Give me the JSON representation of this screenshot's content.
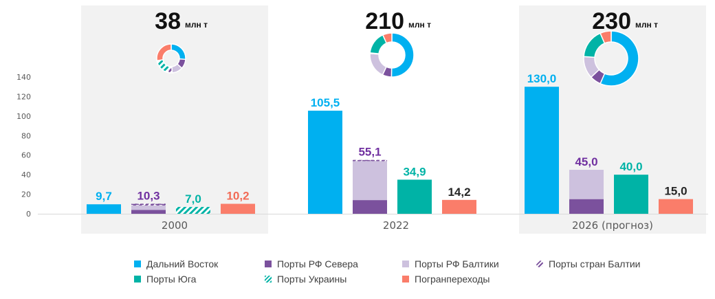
{
  "chart_data": {
    "type": "bar",
    "groups": [
      "2000",
      "2022",
      "2026 (прогноз)"
    ],
    "totals": [
      "38",
      "210",
      "230"
    ],
    "totals_unit": "млн т",
    "ylim": [
      0,
      140
    ],
    "yticks": [
      0,
      20,
      40,
      60,
      80,
      100,
      120,
      140
    ],
    "highlighted_groups": [
      "2000",
      "2026 (прогноз)"
    ],
    "bars": [
      {
        "group": "2000",
        "series": "Дальний Восток",
        "value": 9.7,
        "label": "9,7"
      },
      {
        "group": "2000",
        "stack": [
          {
            "series": "Порты РФ Севера",
            "value": 4.0
          },
          {
            "series": "Порты РФ Балтики",
            "value": 4.5
          },
          {
            "series": "Порты стран Балтии",
            "value": 1.8
          }
        ],
        "value": 10.3,
        "label": "10,3"
      },
      {
        "group": "2000",
        "series": "Порты Украины",
        "value": 7.0,
        "label": "7,0"
      },
      {
        "group": "2000",
        "series": "Погранпереходы",
        "value": 10.2,
        "label": "10,2"
      },
      {
        "group": "2022",
        "series": "Дальний Восток",
        "value": 105.5,
        "label": "105,5"
      },
      {
        "group": "2022",
        "stack": [
          {
            "series": "Порты РФ Севера",
            "value": 14.0
          },
          {
            "series": "Порты РФ Балтики",
            "value": 40.0
          },
          {
            "series": "Порты стран Балтии",
            "value": 1.1
          }
        ],
        "value": 55.1,
        "label": "55,1"
      },
      {
        "group": "2022",
        "series": "Порты Юга",
        "value": 34.9,
        "label": "34,9"
      },
      {
        "group": "2022",
        "series": "Погранпереходы",
        "value": 14.2,
        "label": "14,2"
      },
      {
        "group": "2026 (прогноз)",
        "series": "Дальний Восток",
        "value": 130.0,
        "label": "130,0"
      },
      {
        "group": "2026 (прогноз)",
        "stack": [
          {
            "series": "Порты РФ Севера",
            "value": 15.0
          },
          {
            "series": "Порты РФ Балтики",
            "value": 30.0
          }
        ],
        "value": 45.0,
        "label": "45,0"
      },
      {
        "group": "2026 (прогноз)",
        "series": "Порты Юга",
        "value": 40.0,
        "label": "40,0"
      },
      {
        "group": "2026 (прогноз)",
        "series": "Погранпереходы",
        "value": 15.0,
        "label": "15,0"
      }
    ],
    "donuts": [
      {
        "group": "2000",
        "slices": [
          {
            "series": "Дальний Восток",
            "value": 9.7
          },
          {
            "series": "Порты РФ Севера",
            "value": 4.0
          },
          {
            "series": "Порты РФ Балтики",
            "value": 4.5
          },
          {
            "series": "Порты стран Балтии",
            "value": 1.8
          },
          {
            "series": "Порты Украины",
            "value": 7.0
          },
          {
            "series": "Погранпереходы",
            "value": 10.2
          }
        ]
      },
      {
        "group": "2022",
        "slices": [
          {
            "series": "Дальний Восток",
            "value": 105.5
          },
          {
            "series": "Порты РФ Севера",
            "value": 14.0
          },
          {
            "series": "Порты РФ Балтики",
            "value": 40.0
          },
          {
            "series": "Порты стран Балтии",
            "value": 1.1
          },
          {
            "series": "Порты Юга",
            "value": 34.9
          },
          {
            "series": "Погранпереходы",
            "value": 14.2
          }
        ]
      },
      {
        "group": "2026 (прогноз)",
        "slices": [
          {
            "series": "Дальний Восток",
            "value": 130.0
          },
          {
            "series": "Порты РФ Севера",
            "value": 15.0
          },
          {
            "series": "Порты РФ Балтики",
            "value": 30.0
          },
          {
            "series": "Порты Юга",
            "value": 40.0
          },
          {
            "series": "Погранпереходы",
            "value": 15.0
          }
        ]
      }
    ],
    "series": [
      {
        "name": "Дальний Восток",
        "color": "#00B0F0",
        "label_color": "#00B0F0",
        "pattern": "solid"
      },
      {
        "name": "Порты РФ Севера",
        "color": "#7B519D",
        "label_color": "#7030A0",
        "pattern": "solid"
      },
      {
        "name": "Порты РФ Балтики",
        "color": "#CDC1DE",
        "label_color": "#7030A0",
        "pattern": "solid"
      },
      {
        "name": "Порты стран Балтии",
        "color": "#7B519D",
        "label_color": "#7030A0",
        "pattern": "hatched"
      },
      {
        "name": "Порты Юга",
        "color": "#00B3A6",
        "label_color": "#00B3A6",
        "pattern": "solid"
      },
      {
        "name": "Порты Украины",
        "color": "#00B3A6",
        "label_color": "#00B3A6",
        "pattern": "hatched"
      },
      {
        "name": "Погранпереходы",
        "color": "#FA7D6A",
        "label_color": "#F26B56",
        "pattern": "solid"
      }
    ],
    "legend_rows": [
      [
        "Дальний Восток",
        "Порты РФ Севера",
        "Порты РФ Балтики",
        "Порты стран Балтии"
      ],
      [
        "Порты Юга",
        "Порты Украины",
        "Погранпереходы"
      ]
    ],
    "legend_position": "bottom",
    "group_background": "#F2F2F2",
    "label_dark_color": "#262626"
  }
}
